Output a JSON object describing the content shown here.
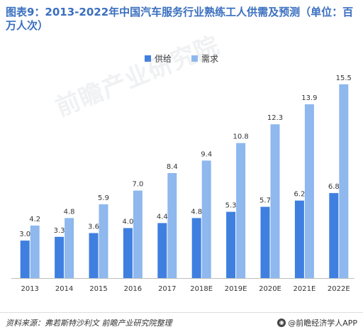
{
  "title": "图表9：2013-2022年中国汽车服务行业熟练工人供需及预测（单位：百万人次）",
  "watermark": "前瞻产业研究院",
  "colors": {
    "supply": "#3f7fe0",
    "demand": "#8eb8ee",
    "axis": "#bfbfbf",
    "title": "#3a6fbf"
  },
  "footer": {
    "source": "资料来源：弗若斯特沙利文  前瞻产业研究院整理",
    "brand": "@前瞻经济学人APP",
    "brand_icon": "前瞻-logo-icon"
  },
  "chart_data": {
    "type": "bar",
    "categories": [
      "2013",
      "2014",
      "2015",
      "2016",
      "2017",
      "2018E",
      "2019E",
      "2020E",
      "2021E",
      "2022E"
    ],
    "series": [
      {
        "name": "供给",
        "values": [
          3.0,
          3.3,
          3.6,
          4.0,
          4.4,
          4.8,
          5.3,
          5.7,
          6.2,
          6.8
        ],
        "labels": [
          "3.0",
          "3.3",
          "3.6",
          "4.0",
          "4.4",
          "4.8",
          "5.3",
          "5.7",
          "6.2",
          "6.8"
        ]
      },
      {
        "name": "需求",
        "values": [
          4.2,
          4.8,
          5.9,
          7.0,
          8.4,
          9.4,
          10.8,
          12.3,
          13.9,
          15.5
        ],
        "labels": [
          "4.2",
          "4.8",
          "5.9",
          "7.0",
          "8.4",
          "9.4",
          "10.8",
          "12.3",
          "13.9",
          "15.5"
        ]
      }
    ],
    "ylim": [
      0,
      16
    ],
    "grid": false,
    "legend": "top-center"
  }
}
